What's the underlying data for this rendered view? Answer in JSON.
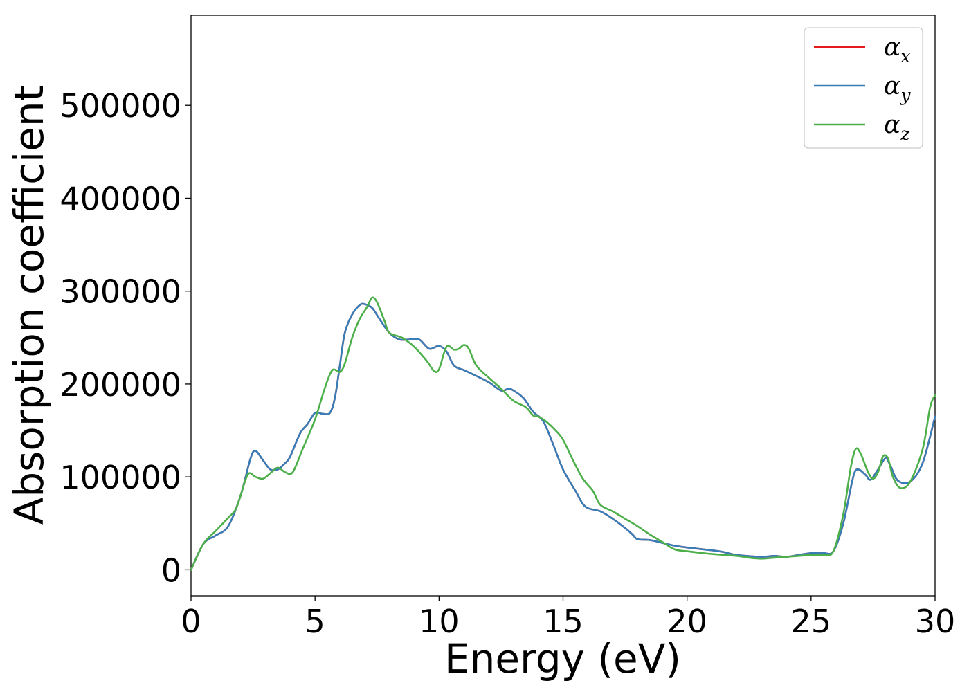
{
  "chart_data": {
    "type": "line",
    "xlabel": "Energy (eV)",
    "ylabel": "Absorption coefficient",
    "xlim": [
      0,
      30
    ],
    "ylim": [
      -28000,
      597000
    ],
    "x_ticks": [
      0,
      5,
      10,
      15,
      20,
      25,
      30
    ],
    "x_tick_labels": [
      "0",
      "5",
      "10",
      "15",
      "20",
      "25",
      "30"
    ],
    "y_ticks": [
      0,
      100000,
      200000,
      300000,
      400000,
      500000
    ],
    "y_tick_labels": [
      "0",
      "100000",
      "200000",
      "300000",
      "400000",
      "500000"
    ],
    "grid": false,
    "legend_position": "top-right",
    "series": [
      {
        "name": "α",
        "subscript": "x",
        "color": "#e41a1c",
        "points": [
          [
            0,
            0
          ],
          [
            0.5,
            28000
          ],
          [
            1,
            37000
          ],
          [
            1.5,
            47000
          ],
          [
            2,
            80000
          ],
          [
            2.4,
            120000
          ],
          [
            2.6,
            128000
          ],
          [
            2.9,
            118000
          ],
          [
            3.2,
            108000
          ],
          [
            3.5,
            108000
          ],
          [
            3.8,
            115000
          ],
          [
            4,
            122000
          ],
          [
            4.4,
            147000
          ],
          [
            4.7,
            157000
          ],
          [
            5,
            169000
          ],
          [
            5.3,
            168000
          ],
          [
            5.6,
            169000
          ],
          [
            5.8,
            185000
          ],
          [
            6,
            220000
          ],
          [
            6.2,
            255000
          ],
          [
            6.5,
            275000
          ],
          [
            6.8,
            285000
          ],
          [
            7,
            286000
          ],
          [
            7.3,
            282000
          ],
          [
            7.6,
            270000
          ],
          [
            8,
            255000
          ],
          [
            8.4,
            248000
          ],
          [
            8.8,
            248000
          ],
          [
            9.2,
            248000
          ],
          [
            9.6,
            238000
          ],
          [
            10,
            241000
          ],
          [
            10.3,
            235000
          ],
          [
            10.6,
            220000
          ],
          [
            11,
            215000
          ],
          [
            11.4,
            210000
          ],
          [
            12,
            202000
          ],
          [
            12.5,
            193000
          ],
          [
            12.8,
            195000
          ],
          [
            13,
            193000
          ],
          [
            13.4,
            185000
          ],
          [
            13.8,
            170000
          ],
          [
            14.2,
            160000
          ],
          [
            14.6,
            135000
          ],
          [
            15,
            108000
          ],
          [
            15.5,
            85000
          ],
          [
            15.9,
            68000
          ],
          [
            16.5,
            63000
          ],
          [
            17,
            55000
          ],
          [
            17.5,
            45000
          ],
          [
            17.8,
            38000
          ],
          [
            18,
            33000
          ],
          [
            18.5,
            32000
          ],
          [
            19,
            29000
          ],
          [
            19.5,
            26000
          ],
          [
            20,
            24000
          ],
          [
            21,
            21000
          ],
          [
            21.5,
            19000
          ],
          [
            22,
            16000
          ],
          [
            23,
            14000
          ],
          [
            23.5,
            15000
          ],
          [
            24,
            14000
          ],
          [
            24.5,
            16000
          ],
          [
            25,
            18000
          ],
          [
            25.5,
            18000
          ],
          [
            25.9,
            20000
          ],
          [
            26.3,
            50000
          ],
          [
            26.7,
            100000
          ],
          [
            26.9,
            108000
          ],
          [
            27.2,
            102000
          ],
          [
            27.4,
            97000
          ],
          [
            27.7,
            108000
          ],
          [
            28,
            120000
          ],
          [
            28.2,
            112000
          ],
          [
            28.5,
            96000
          ],
          [
            29,
            95000
          ],
          [
            29.5,
            115000
          ],
          [
            30,
            165000
          ]
        ]
      },
      {
        "name": "α",
        "subscript": "y",
        "color": "#377eb8",
        "points": [
          [
            0,
            0
          ],
          [
            0.5,
            28000
          ],
          [
            1,
            37000
          ],
          [
            1.5,
            47000
          ],
          [
            2,
            80000
          ],
          [
            2.4,
            120000
          ],
          [
            2.6,
            128000
          ],
          [
            2.9,
            118000
          ],
          [
            3.2,
            108000
          ],
          [
            3.5,
            108000
          ],
          [
            3.8,
            115000
          ],
          [
            4,
            122000
          ],
          [
            4.4,
            147000
          ],
          [
            4.7,
            157000
          ],
          [
            5,
            169000
          ],
          [
            5.3,
            168000
          ],
          [
            5.6,
            169000
          ],
          [
            5.8,
            185000
          ],
          [
            6,
            220000
          ],
          [
            6.2,
            255000
          ],
          [
            6.5,
            275000
          ],
          [
            6.8,
            285000
          ],
          [
            7,
            286000
          ],
          [
            7.3,
            282000
          ],
          [
            7.6,
            270000
          ],
          [
            8,
            255000
          ],
          [
            8.4,
            248000
          ],
          [
            8.8,
            248000
          ],
          [
            9.2,
            248000
          ],
          [
            9.6,
            238000
          ],
          [
            10,
            241000
          ],
          [
            10.3,
            235000
          ],
          [
            10.6,
            220000
          ],
          [
            11,
            215000
          ],
          [
            11.4,
            210000
          ],
          [
            12,
            202000
          ],
          [
            12.5,
            193000
          ],
          [
            12.8,
            195000
          ],
          [
            13,
            193000
          ],
          [
            13.4,
            185000
          ],
          [
            13.8,
            170000
          ],
          [
            14.2,
            160000
          ],
          [
            14.6,
            135000
          ],
          [
            15,
            108000
          ],
          [
            15.5,
            85000
          ],
          [
            15.9,
            68000
          ],
          [
            16.5,
            63000
          ],
          [
            17,
            55000
          ],
          [
            17.5,
            45000
          ],
          [
            17.8,
            38000
          ],
          [
            18,
            33000
          ],
          [
            18.5,
            32000
          ],
          [
            19,
            29000
          ],
          [
            19.5,
            26000
          ],
          [
            20,
            24000
          ],
          [
            21,
            21000
          ],
          [
            21.5,
            19000
          ],
          [
            22,
            16000
          ],
          [
            23,
            14000
          ],
          [
            23.5,
            15000
          ],
          [
            24,
            14000
          ],
          [
            24.5,
            16000
          ],
          [
            25,
            18000
          ],
          [
            25.5,
            18000
          ],
          [
            25.9,
            20000
          ],
          [
            26.3,
            50000
          ],
          [
            26.7,
            100000
          ],
          [
            26.9,
            108000
          ],
          [
            27.2,
            102000
          ],
          [
            27.4,
            97000
          ],
          [
            27.7,
            108000
          ],
          [
            28,
            120000
          ],
          [
            28.2,
            112000
          ],
          [
            28.5,
            96000
          ],
          [
            29,
            95000
          ],
          [
            29.5,
            115000
          ],
          [
            30,
            165000
          ]
        ]
      },
      {
        "name": "α",
        "subscript": "z",
        "color": "#4daf4a",
        "points": [
          [
            0,
            0
          ],
          [
            0.5,
            28000
          ],
          [
            1,
            42000
          ],
          [
            1.5,
            56000
          ],
          [
            1.8,
            65000
          ],
          [
            2,
            80000
          ],
          [
            2.3,
            103000
          ],
          [
            2.6,
            100000
          ],
          [
            2.9,
            98000
          ],
          [
            3.2,
            104000
          ],
          [
            3.5,
            110000
          ],
          [
            3.8,
            105000
          ],
          [
            4.1,
            105000
          ],
          [
            4.5,
            130000
          ],
          [
            5,
            162000
          ],
          [
            5.4,
            196000
          ],
          [
            5.7,
            215000
          ],
          [
            6,
            213000
          ],
          [
            6.2,
            222000
          ],
          [
            6.5,
            250000
          ],
          [
            6.8,
            270000
          ],
          [
            7.1,
            283000
          ],
          [
            7.3,
            293000
          ],
          [
            7.5,
            288000
          ],
          [
            7.8,
            268000
          ],
          [
            8,
            255000
          ],
          [
            8.5,
            250000
          ],
          [
            9,
            240000
          ],
          [
            9.5,
            225000
          ],
          [
            9.8,
            214000
          ],
          [
            10,
            216000
          ],
          [
            10.3,
            240000
          ],
          [
            10.6,
            237000
          ],
          [
            10.8,
            238000
          ],
          [
            11,
            242000
          ],
          [
            11.2,
            238000
          ],
          [
            11.5,
            220000
          ],
          [
            12,
            207000
          ],
          [
            12.5,
            195000
          ],
          [
            13,
            182000
          ],
          [
            13.5,
            175000
          ],
          [
            13.8,
            166000
          ],
          [
            14,
            165000
          ],
          [
            14.3,
            160000
          ],
          [
            14.7,
            150000
          ],
          [
            15,
            140000
          ],
          [
            15.4,
            118000
          ],
          [
            15.8,
            98000
          ],
          [
            16.2,
            85000
          ],
          [
            16.5,
            70000
          ],
          [
            17,
            63000
          ],
          [
            17.5,
            55000
          ],
          [
            18,
            47000
          ],
          [
            18.5,
            38000
          ],
          [
            19,
            30000
          ],
          [
            19.5,
            22000
          ],
          [
            20,
            20000
          ],
          [
            21,
            17000
          ],
          [
            22,
            15000
          ],
          [
            22.5,
            13000
          ],
          [
            23,
            12000
          ],
          [
            23.5,
            13000
          ],
          [
            24,
            14000
          ],
          [
            24.5,
            15000
          ],
          [
            25,
            16000
          ],
          [
            25.5,
            16000
          ],
          [
            25.9,
            20000
          ],
          [
            26.3,
            60000
          ],
          [
            26.6,
            110000
          ],
          [
            26.8,
            130000
          ],
          [
            27,
            125000
          ],
          [
            27.3,
            105000
          ],
          [
            27.5,
            98000
          ],
          [
            27.7,
            105000
          ],
          [
            27.9,
            122000
          ],
          [
            28.1,
            120000
          ],
          [
            28.3,
            100000
          ],
          [
            28.6,
            88000
          ],
          [
            29,
            95000
          ],
          [
            29.5,
            130000
          ],
          [
            29.8,
            175000
          ],
          [
            30,
            188000
          ]
        ]
      }
    ]
  }
}
